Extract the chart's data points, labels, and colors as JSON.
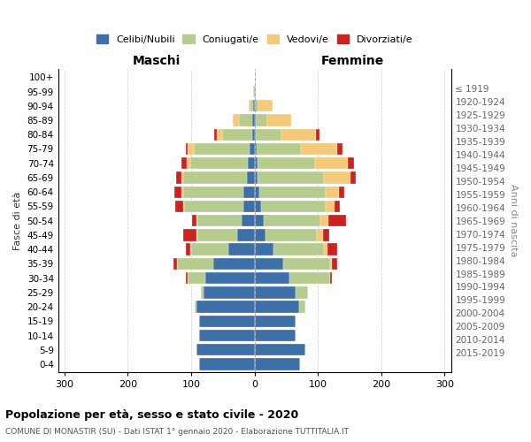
{
  "age_groups": [
    "0-4",
    "5-9",
    "10-14",
    "15-19",
    "20-24",
    "25-29",
    "30-34",
    "35-39",
    "40-44",
    "45-49",
    "50-54",
    "55-59",
    "60-64",
    "65-69",
    "70-74",
    "75-79",
    "80-84",
    "85-89",
    "90-94",
    "95-99",
    "100+"
  ],
  "birth_years": [
    "2015-2019",
    "2010-2014",
    "2005-2009",
    "2000-2004",
    "1995-1999",
    "1990-1994",
    "1985-1989",
    "1980-1984",
    "1975-1979",
    "1970-1974",
    "1965-1969",
    "1960-1964",
    "1955-1959",
    "1950-1954",
    "1945-1949",
    "1940-1944",
    "1935-1939",
    "1930-1934",
    "1925-1929",
    "1920-1924",
    "≤ 1919"
  ],
  "male": {
    "celibi": [
      88,
      92,
      88,
      87,
      92,
      80,
      78,
      65,
      42,
      28,
      20,
      18,
      17,
      12,
      10,
      8,
      3,
      3,
      2,
      1,
      0
    ],
    "coniugati": [
      0,
      0,
      0,
      0,
      2,
      5,
      28,
      58,
      58,
      62,
      70,
      93,
      95,
      100,
      92,
      88,
      48,
      22,
      5,
      1,
      0
    ],
    "vedovi": [
      0,
      0,
      0,
      0,
      0,
      0,
      0,
      0,
      1,
      1,
      1,
      2,
      3,
      4,
      5,
      10,
      8,
      10,
      2,
      0,
      0
    ],
    "divorziati": [
      0,
      0,
      0,
      0,
      0,
      0,
      2,
      5,
      8,
      22,
      8,
      12,
      12,
      8,
      8,
      3,
      5,
      0,
      0,
      0,
      0
    ]
  },
  "female": {
    "nubili": [
      72,
      80,
      65,
      65,
      70,
      65,
      55,
      45,
      30,
      18,
      14,
      10,
      8,
      5,
      5,
      3,
      2,
      2,
      1,
      0,
      0
    ],
    "coniugate": [
      0,
      0,
      0,
      0,
      10,
      20,
      65,
      75,
      80,
      80,
      90,
      102,
      105,
      105,
      90,
      70,
      40,
      18,
      5,
      0,
      0
    ],
    "vedove": [
      0,
      0,
      0,
      0,
      0,
      0,
      0,
      2,
      5,
      10,
      12,
      15,
      20,
      42,
      52,
      58,
      55,
      38,
      22,
      2,
      1
    ],
    "divorziate": [
      0,
      0,
      0,
      0,
      0,
      0,
      2,
      8,
      15,
      10,
      28,
      8,
      8,
      8,
      10,
      8,
      5,
      0,
      0,
      0,
      0
    ]
  },
  "colors": {
    "celibi": "#3d6fa8",
    "coniugati": "#b5cc8e",
    "vedovi": "#f5c97a",
    "divorziati": "#cc2222"
  },
  "xlim": 310,
  "title": "Popolazione per età, sesso e stato civile - 2020",
  "subtitle": "COMUNE DI MONASTIR (SU) - Dati ISTAT 1° gennaio 2020 - Elaborazione TUTTITALIA.IT",
  "legend_labels": [
    "Celibi/Nubili",
    "Coniugati/e",
    "Vedovi/e",
    "Divorziati/e"
  ],
  "maschi_label": "Maschi",
  "femmine_label": "Femmine",
  "fasce_label": "Fasce di età",
  "anni_label": "Anni di nascita",
  "xticks": [
    -300,
    -200,
    -100,
    0,
    100,
    200,
    300
  ],
  "xtick_labels": [
    "300",
    "200",
    "100",
    "0",
    "100",
    "200",
    "300"
  ]
}
